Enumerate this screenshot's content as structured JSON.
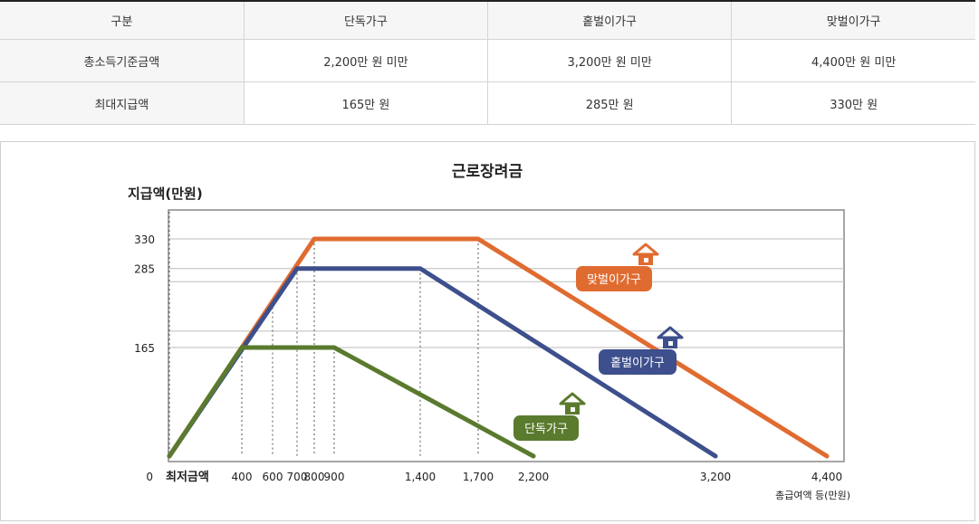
{
  "table": {
    "headers": [
      "구분",
      "단독가구",
      "홑벌이가구",
      "맞벌이가구"
    ],
    "rows": [
      {
        "label": "총소득기준금액",
        "values": [
          "2,200만 원 미만",
          "3,200만 원 미만",
          "4,400만 원 미만"
        ]
      },
      {
        "label": "최대지급액",
        "values": [
          "165만 원",
          "285만 원",
          "330만 원"
        ]
      }
    ]
  },
  "chart_data": {
    "type": "line",
    "title": "근로장려금",
    "ylabel": "지급액(만원)",
    "xlabel": "총급여액 등(만원)",
    "origin_label": "0",
    "min_wage_label": "최저금액",
    "x_ticks": [
      "400",
      "600",
      "700",
      "800",
      "900",
      "1,400",
      "1,700",
      "2,200",
      "3,200",
      "4,400"
    ],
    "y_ticks": [
      "165",
      "285",
      "330"
    ],
    "ylim": [
      0,
      400
    ],
    "series": [
      {
        "name": "단독가구",
        "color": "#5a7a2e",
        "points": [
          [
            0,
            0
          ],
          [
            400,
            165
          ],
          [
            900,
            165
          ],
          [
            2200,
            0
          ]
        ]
      },
      {
        "name": "홑벌이가구",
        "color": "#3d4f8c",
        "points": [
          [
            0,
            0
          ],
          [
            700,
            285
          ],
          [
            1400,
            285
          ],
          [
            3200,
            0
          ]
        ]
      },
      {
        "name": "맞벌이가구",
        "color": "#e06b30",
        "points": [
          [
            0,
            0
          ],
          [
            800,
            330
          ],
          [
            1700,
            330
          ],
          [
            4400,
            0
          ]
        ]
      }
    ],
    "icon": "house-icon"
  }
}
